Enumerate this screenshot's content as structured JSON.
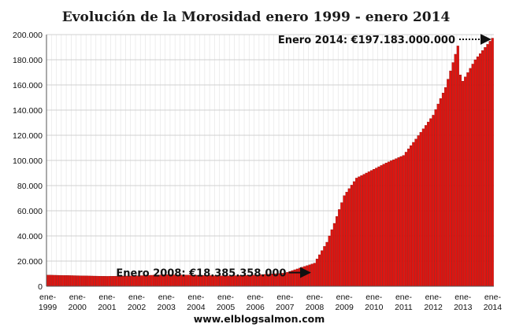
{
  "chart_data": {
    "type": "bar",
    "title": "Evolución de la Morosidad enero 1999 - enero 2014",
    "xlabel": "",
    "ylabel": "",
    "source_label": "www.elblogsalmon.com",
    "ylim": [
      0,
      200000
    ],
    "y_ticks": [
      0,
      20000,
      40000,
      60000,
      80000,
      100000,
      120000,
      140000,
      160000,
      180000,
      200000
    ],
    "y_tick_labels": [
      "0",
      "20.000",
      "40.000",
      "60.000",
      "80.000",
      "100.000",
      "120.000",
      "140.000",
      "160.000",
      "180.000",
      "200.000"
    ],
    "x_ticks": [
      {
        "l1": "ene-",
        "l2": "1999"
      },
      {
        "l1": "ene-",
        "l2": "2000"
      },
      {
        "l1": "ene-",
        "l2": "2001"
      },
      {
        "l1": "ene-",
        "l2": "2002"
      },
      {
        "l1": "ene-",
        "l2": "2003"
      },
      {
        "l1": "ene-",
        "l2": "2004"
      },
      {
        "l1": "ene-",
        "l2": "2005"
      },
      {
        "l1": "ene-",
        "l2": "2006"
      },
      {
        "l1": "ene-",
        "l2": "2007"
      },
      {
        "l1": "ene-",
        "l2": "2008"
      },
      {
        "l1": "ene-",
        "l2": "2009"
      },
      {
        "l1": "ene-",
        "l2": "2010"
      },
      {
        "l1": "ene-",
        "l2": "2011"
      },
      {
        "l1": "ene-",
        "l2": "2012"
      },
      {
        "l1": "ene-",
        "l2": "2013"
      },
      {
        "l1": "ene-",
        "l2": "2014"
      }
    ],
    "grid": true,
    "bar_color": "#e0140f",
    "series_anchors": [
      {
        "date": "1999-01",
        "value": 8900
      },
      {
        "date": "2000-01",
        "value": 8400
      },
      {
        "date": "2001-01",
        "value": 7900
      },
      {
        "date": "2002-01",
        "value": 8300
      },
      {
        "date": "2003-01",
        "value": 9200
      },
      {
        "date": "2004-01",
        "value": 8800
      },
      {
        "date": "2005-01",
        "value": 8200
      },
      {
        "date": "2006-01",
        "value": 8900
      },
      {
        "date": "2007-01",
        "value": 10500
      },
      {
        "date": "2008-01",
        "value": 18385
      },
      {
        "date": "2008-06",
        "value": 35000
      },
      {
        "date": "2008-09",
        "value": 50000
      },
      {
        "date": "2009-01",
        "value": 72000
      },
      {
        "date": "2009-06",
        "value": 86000
      },
      {
        "date": "2010-01",
        "value": 93000
      },
      {
        "date": "2010-06",
        "value": 98000
      },
      {
        "date": "2011-01",
        "value": 104000
      },
      {
        "date": "2011-06",
        "value": 117000
      },
      {
        "date": "2012-01",
        "value": 136000
      },
      {
        "date": "2012-06",
        "value": 158000
      },
      {
        "date": "2012-11",
        "value": 191000
      },
      {
        "date": "2012-12",
        "value": 168000
      },
      {
        "date": "2013-01",
        "value": 163000
      },
      {
        "date": "2013-06",
        "value": 180000
      },
      {
        "date": "2014-01",
        "value": 197183
      }
    ],
    "annotations": [
      {
        "text": "Enero 2008:  €18.385.358.000",
        "date": "2008-01",
        "value": 18385,
        "arrow": "solid"
      },
      {
        "text": "Enero 2014:  €197.183.000.000",
        "date": "2014-01",
        "value": 197183,
        "arrow": "dotted"
      }
    ]
  }
}
